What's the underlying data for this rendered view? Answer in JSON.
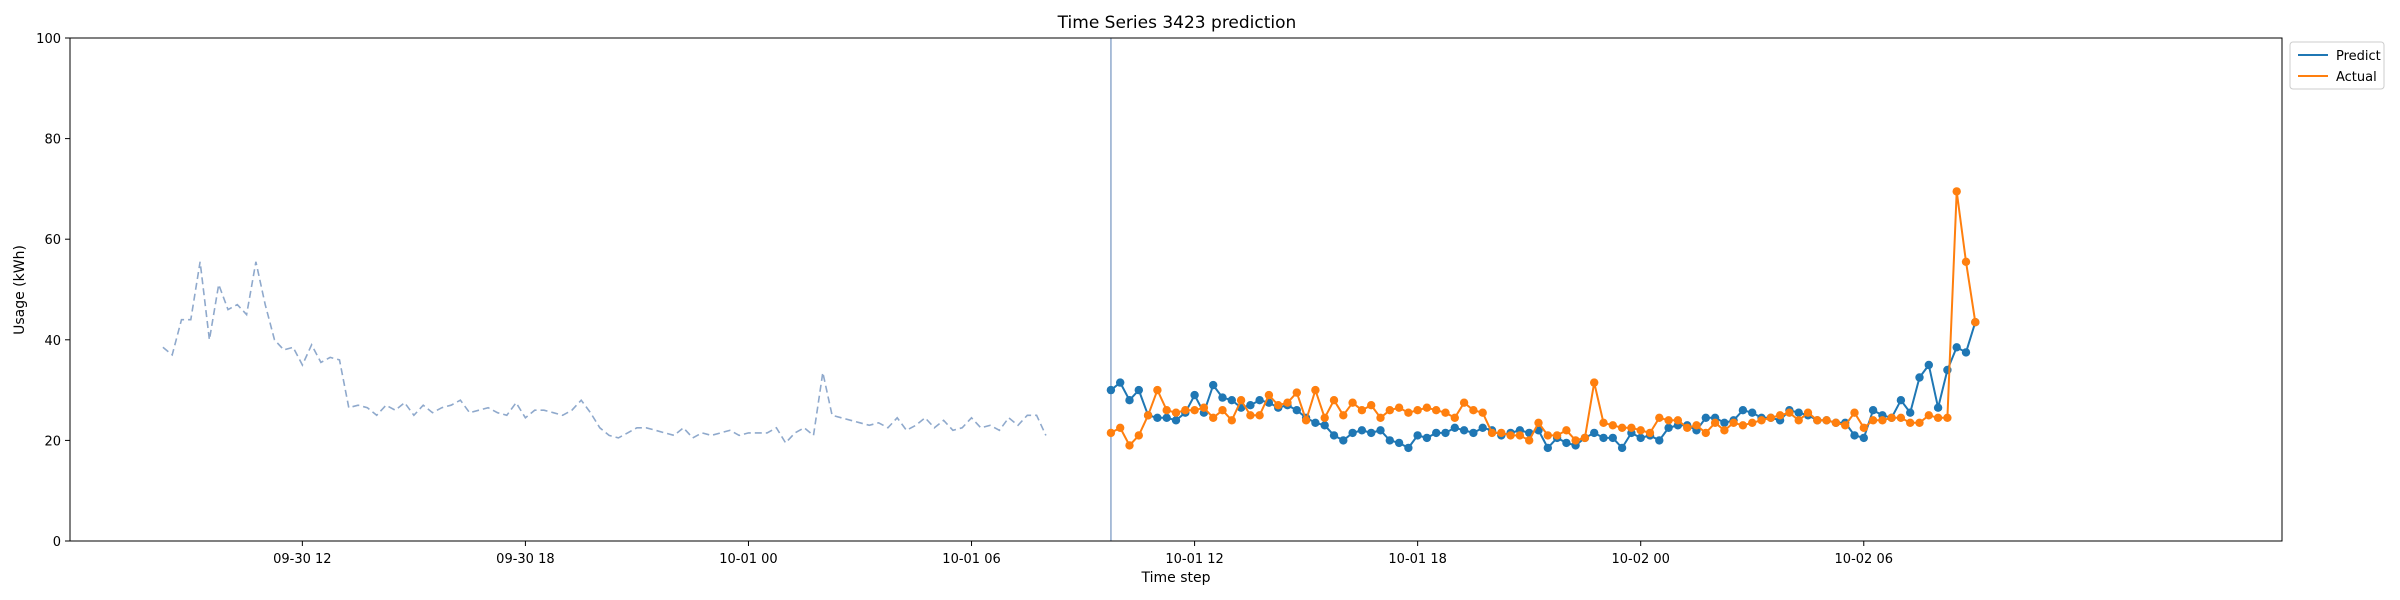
{
  "chart_data": {
    "type": "line",
    "title": "Time Series 3423 prediction",
    "xlabel": "Time step",
    "ylabel": "Usage (kWh)",
    "ylim": [
      0,
      100
    ],
    "yticks": [
      0,
      20,
      40,
      60,
      80,
      100
    ],
    "xlim": [
      "2024-09-30 05:45",
      "2024-10-02 17:15"
    ],
    "xticks": [
      {
        "t": "2024-09-30 12:00",
        "label": "09-30 12"
      },
      {
        "t": "2024-09-30 18:00",
        "label": "09-30 18"
      },
      {
        "t": "2024-10-01 00:00",
        "label": "10-01 00"
      },
      {
        "t": "2024-10-01 06:00",
        "label": "10-01 06"
      },
      {
        "t": "2024-10-01 12:00",
        "label": "10-01 12"
      },
      {
        "t": "2024-10-01 18:00",
        "label": "10-01 18"
      },
      {
        "t": "2024-10-02 00:00",
        "label": "10-02 00"
      },
      {
        "t": "2024-10-02 06:00",
        "label": "10-02 06"
      }
    ],
    "interval_minutes": 15,
    "grid": false,
    "legend": "upper-right-outside",
    "forecast_start": "2024-10-01 09:45",
    "colors": {
      "history": "#8fa9cc",
      "predict": "#1f77b4",
      "actual": "#ff7f0e",
      "divider": "#8fa9cc"
    },
    "series": [
      {
        "name": "",
        "style": "dashed",
        "start": "2024-09-30 08:15",
        "values": [
          38.5,
          37.0,
          44.0,
          44.0,
          55.5,
          40.0,
          51.0,
          46.0,
          47.0,
          45.0,
          55.5,
          47.0,
          40.0,
          38.0,
          38.5,
          35.0,
          39.0,
          35.5,
          36.5,
          36.0,
          26.5,
          27.0,
          26.5,
          25.0,
          27.0,
          26.0,
          27.5,
          25.0,
          27.0,
          25.5,
          26.5,
          27.0,
          28.0,
          25.5,
          26.0,
          26.5,
          25.5,
          25.0,
          27.5,
          24.5,
          26.0,
          26.0,
          25.5,
          25.0,
          26.0,
          28.0,
          25.5,
          22.5,
          21.0,
          20.5,
          21.5,
          22.5,
          22.5,
          22.0,
          21.5,
          21.0,
          22.5,
          20.5,
          21.5,
          21.0,
          21.5,
          22.0,
          21.0,
          21.5,
          21.5,
          21.5,
          22.5,
          19.5,
          21.5,
          22.5,
          21.0,
          33.5,
          25.0,
          24.5,
          24.0,
          23.5,
          23.0,
          23.5,
          22.5,
          24.5,
          22.0,
          23.0,
          24.5,
          22.5,
          24.0,
          22.0,
          22.5,
          24.5,
          22.5,
          23.0,
          22.0,
          24.5,
          23.0,
          25.0,
          25.0,
          21.0
        ]
      },
      {
        "name": "Predict",
        "style": "solid-markers",
        "start": "2024-10-01 09:45",
        "values": [
          30.0,
          31.5,
          28.0,
          30.0,
          25.0,
          24.5,
          24.5,
          24.0,
          25.5,
          29.0,
          25.5,
          31.0,
          28.5,
          28.0,
          26.5,
          27.0,
          28.0,
          27.5,
          26.5,
          27.0,
          26.0,
          24.5,
          23.5,
          23.0,
          21.0,
          20.0,
          21.5,
          22.0,
          21.5,
          22.0,
          20.0,
          19.5,
          18.5,
          21.0,
          20.5,
          21.5,
          21.5,
          22.5,
          22.0,
          21.5,
          22.5,
          22.0,
          21.0,
          21.5,
          22.0,
          21.5,
          22.0,
          18.5,
          20.5,
          19.5,
          19.0,
          20.5,
          21.5,
          20.5,
          20.5,
          18.5,
          21.5,
          20.5,
          21.0,
          20.0,
          22.5,
          23.0,
          23.0,
          22.0,
          24.5,
          24.5,
          23.5,
          24.0,
          26.0,
          25.5,
          24.5,
          24.5,
          24.0,
          26.0,
          25.5,
          25.0,
          24.0,
          24.0,
          23.5,
          23.5,
          21.0,
          20.5,
          26.0,
          25.0,
          24.5,
          28.0,
          25.5,
          32.5,
          35.0,
          26.5,
          34.0,
          38.5,
          37.5,
          43.5
        ]
      },
      {
        "name": "Actual",
        "style": "solid-markers",
        "start": "2024-10-01 09:45",
        "values": [
          21.5,
          22.5,
          19.0,
          21.0,
          25.0,
          30.0,
          26.0,
          25.5,
          26.0,
          26.0,
          26.5,
          24.5,
          26.0,
          24.0,
          28.0,
          25.0,
          25.0,
          29.0,
          27.0,
          27.5,
          29.5,
          24.0,
          30.0,
          24.5,
          28.0,
          25.0,
          27.5,
          26.0,
          27.0,
          24.5,
          26.0,
          26.5,
          25.5,
          26.0,
          26.5,
          26.0,
          25.5,
          24.5,
          27.5,
          26.0,
          25.5,
          21.5,
          21.5,
          21.0,
          21.0,
          20.0,
          23.5,
          21.0,
          21.0,
          22.0,
          20.0,
          20.5,
          31.5,
          23.5,
          23.0,
          22.5,
          22.5,
          22.0,
          21.5,
          24.5,
          24.0,
          24.0,
          22.5,
          23.0,
          21.5,
          23.5,
          22.0,
          23.5,
          23.0,
          23.5,
          24.0,
          24.5,
          25.0,
          25.5,
          24.0,
          25.5,
          24.0,
          24.0,
          23.5,
          23.0,
          25.5,
          22.5,
          24.0,
          24.0,
          24.5,
          24.5,
          23.5,
          23.5,
          25.0,
          24.5,
          24.5,
          69.5,
          55.5,
          43.5
        ]
      }
    ]
  }
}
